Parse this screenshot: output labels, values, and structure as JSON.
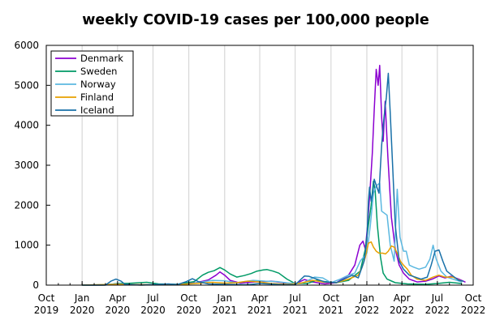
{
  "chart_data": {
    "type": "line",
    "title": "weekly COVID-19 cases per 100,000 people",
    "xlabel": "",
    "ylabel": "",
    "xlim": [
      "2019-10-01",
      "2022-10-01"
    ],
    "ylim": [
      0,
      6000
    ],
    "grid": "vertical",
    "legend_position": "top-left",
    "y_ticks": [
      {
        "value": 0,
        "label": "0"
      },
      {
        "value": 1000,
        "label": "1000"
      },
      {
        "value": 2000,
        "label": "2000"
      },
      {
        "value": 3000,
        "label": "3000"
      },
      {
        "value": 4000,
        "label": "4000"
      },
      {
        "value": 5000,
        "label": "5000"
      },
      {
        "value": 6000,
        "label": "6000"
      }
    ],
    "x_ticks": [
      {
        "date": "2019-10-01",
        "line1": "Oct",
        "line2": "2019"
      },
      {
        "date": "2020-01-01",
        "line1": "Jan",
        "line2": "2020"
      },
      {
        "date": "2020-04-01",
        "line1": "Apr",
        "line2": "2020"
      },
      {
        "date": "2020-07-01",
        "line1": "Jul",
        "line2": "2020"
      },
      {
        "date": "2020-10-01",
        "line1": "Oct",
        "line2": "2020"
      },
      {
        "date": "2021-01-01",
        "line1": "Jan",
        "line2": "2021"
      },
      {
        "date": "2021-04-01",
        "line1": "Apr",
        "line2": "2021"
      },
      {
        "date": "2021-07-01",
        "line1": "Jul",
        "line2": "2021"
      },
      {
        "date": "2021-10-01",
        "line1": "Oct",
        "line2": "2021"
      },
      {
        "date": "2022-01-01",
        "line1": "Jan",
        "line2": "2022"
      },
      {
        "date": "2022-04-01",
        "line1": "Apr",
        "line2": "2022"
      },
      {
        "date": "2022-07-01",
        "line1": "Jul",
        "line2": "2022"
      },
      {
        "date": "2022-10-01",
        "line1": "Oct",
        "line2": "2022"
      }
    ],
    "series": [
      {
        "name": "Denmark",
        "color": "#8b00d0",
        "points": [
          [
            "2020-01-01",
            0
          ],
          [
            "2020-03-05",
            5
          ],
          [
            "2020-04-01",
            40
          ],
          [
            "2020-05-01",
            15
          ],
          [
            "2020-07-01",
            5
          ],
          [
            "2020-09-01",
            20
          ],
          [
            "2020-10-20",
            60
          ],
          [
            "2020-11-20",
            130
          ],
          [
            "2020-12-10",
            250
          ],
          [
            "2020-12-20",
            330
          ],
          [
            "2021-01-01",
            250
          ],
          [
            "2021-01-15",
            120
          ],
          [
            "2021-02-10",
            50
          ],
          [
            "2021-04-01",
            90
          ],
          [
            "2021-05-01",
            100
          ],
          [
            "2021-06-01",
            60
          ],
          [
            "2021-07-01",
            30
          ],
          [
            "2021-07-25",
            140
          ],
          [
            "2021-08-15",
            80
          ],
          [
            "2021-09-15",
            30
          ],
          [
            "2021-10-15",
            60
          ],
          [
            "2021-11-15",
            250
          ],
          [
            "2021-12-01",
            500
          ],
          [
            "2021-12-14",
            1000
          ],
          [
            "2021-12-22",
            1100
          ],
          [
            "2021-12-28",
            900
          ],
          [
            "2022-01-03",
            1500
          ],
          [
            "2022-01-10",
            2500
          ],
          [
            "2022-01-15",
            3300
          ],
          [
            "2022-01-20",
            4400
          ],
          [
            "2022-01-25",
            5400
          ],
          [
            "2022-01-30",
            5000
          ],
          [
            "2022-02-03",
            5500
          ],
          [
            "2022-02-08",
            4200
          ],
          [
            "2022-02-12",
            3600
          ],
          [
            "2022-02-17",
            4600
          ],
          [
            "2022-02-24",
            3200
          ],
          [
            "2022-03-05",
            1700
          ],
          [
            "2022-03-15",
            900
          ],
          [
            "2022-03-25",
            500
          ],
          [
            "2022-04-05",
            300
          ],
          [
            "2022-04-20",
            150
          ],
          [
            "2022-05-10",
            80
          ],
          [
            "2022-06-01",
            100
          ],
          [
            "2022-06-20",
            160
          ],
          [
            "2022-07-05",
            230
          ],
          [
            "2022-07-20",
            180
          ],
          [
            "2022-08-05",
            220
          ],
          [
            "2022-08-25",
            150
          ],
          [
            "2022-09-10",
            80
          ]
        ]
      },
      {
        "name": "Sweden",
        "color": "#009a66",
        "points": [
          [
            "2020-01-01",
            0
          ],
          [
            "2020-03-01",
            5
          ],
          [
            "2020-04-01",
            40
          ],
          [
            "2020-05-01",
            45
          ],
          [
            "2020-06-15",
            70
          ],
          [
            "2020-07-15",
            30
          ],
          [
            "2020-09-01",
            20
          ],
          [
            "2020-10-15",
            90
          ],
          [
            "2020-11-05",
            250
          ],
          [
            "2020-11-20",
            320
          ],
          [
            "2020-12-05",
            360
          ],
          [
            "2020-12-20",
            440
          ],
          [
            "2021-01-01",
            380
          ],
          [
            "2021-01-15",
            280
          ],
          [
            "2021-02-01",
            200
          ],
          [
            "2021-02-20",
            240
          ],
          [
            "2021-03-10",
            290
          ],
          [
            "2021-03-25",
            350
          ],
          [
            "2021-04-10",
            380
          ],
          [
            "2021-04-20",
            390
          ],
          [
            "2021-05-05",
            350
          ],
          [
            "2021-05-20",
            300
          ],
          [
            "2021-06-10",
            150
          ],
          [
            "2021-07-01",
            40
          ],
          [
            "2021-08-01",
            40
          ],
          [
            "2021-08-25",
            120
          ],
          [
            "2021-09-15",
            90
          ],
          [
            "2021-10-15",
            60
          ],
          [
            "2021-11-15",
            120
          ],
          [
            "2021-12-15",
            350
          ],
          [
            "2021-12-28",
            900
          ],
          [
            "2022-01-05",
            1500
          ],
          [
            "2022-01-12",
            2000
          ],
          [
            "2022-01-18",
            2600
          ],
          [
            "2022-01-22",
            2400
          ],
          [
            "2022-01-28",
            1500
          ],
          [
            "2022-02-05",
            700
          ],
          [
            "2022-02-12",
            300
          ],
          [
            "2022-02-22",
            150
          ],
          [
            "2022-03-15",
            60
          ],
          [
            "2022-04-15",
            30
          ],
          [
            "2022-06-01",
            20
          ],
          [
            "2022-07-01",
            40
          ],
          [
            "2022-08-01",
            70
          ],
          [
            "2022-09-01",
            40
          ]
        ]
      },
      {
        "name": "Norway",
        "color": "#5bb8e0",
        "points": [
          [
            "2020-01-01",
            0
          ],
          [
            "2020-03-10",
            20
          ],
          [
            "2020-04-01",
            30
          ],
          [
            "2020-05-01",
            10
          ],
          [
            "2020-08-01",
            10
          ],
          [
            "2020-10-01",
            30
          ],
          [
            "2020-11-10",
            90
          ],
          [
            "2020-12-01",
            120
          ],
          [
            "2021-01-01",
            110
          ],
          [
            "2021-02-01",
            60
          ],
          [
            "2021-03-15",
            120
          ],
          [
            "2021-04-15",
            100
          ],
          [
            "2021-05-15",
            90
          ],
          [
            "2021-06-15",
            50
          ],
          [
            "2021-07-20",
            50
          ],
          [
            "2021-08-20",
            200
          ],
          [
            "2021-09-10",
            180
          ],
          [
            "2021-10-01",
            60
          ],
          [
            "2021-10-25",
            150
          ],
          [
            "2021-11-15",
            250
          ],
          [
            "2021-12-01",
            300
          ],
          [
            "2021-12-15",
            600
          ],
          [
            "2022-01-01",
            800
          ],
          [
            "2022-01-10",
            1500
          ],
          [
            "2022-01-18",
            2300
          ],
          [
            "2022-01-26",
            2500
          ],
          [
            "2022-02-03",
            2550
          ],
          [
            "2022-02-08",
            1850
          ],
          [
            "2022-02-15",
            1800
          ],
          [
            "2022-02-22",
            1750
          ],
          [
            "2022-03-02",
            1000
          ],
          [
            "2022-03-12",
            600
          ],
          [
            "2022-03-20",
            2400
          ],
          [
            "2022-03-27",
            1200
          ],
          [
            "2022-04-05",
            850
          ],
          [
            "2022-04-12",
            850
          ],
          [
            "2022-04-20",
            500
          ],
          [
            "2022-05-01",
            450
          ],
          [
            "2022-05-15",
            400
          ],
          [
            "2022-06-01",
            450
          ],
          [
            "2022-06-12",
            650
          ],
          [
            "2022-06-20",
            1000
          ],
          [
            "2022-06-28",
            650
          ],
          [
            "2022-07-10",
            350
          ],
          [
            "2022-07-25",
            200
          ],
          [
            "2022-08-10",
            150
          ],
          [
            "2022-09-01",
            80
          ]
        ]
      },
      {
        "name": "Finland",
        "color": "#e8a000",
        "points": [
          [
            "2020-01-01",
            0
          ],
          [
            "2020-04-01",
            20
          ],
          [
            "2020-06-01",
            10
          ],
          [
            "2020-09-01",
            10
          ],
          [
            "2020-11-01",
            50
          ],
          [
            "2020-12-01",
            70
          ],
          [
            "2021-01-01",
            50
          ],
          [
            "2021-02-01",
            60
          ],
          [
            "2021-03-01",
            100
          ],
          [
            "2021-04-01",
            80
          ],
          [
            "2021-05-01",
            40
          ],
          [
            "2021-06-15",
            20
          ],
          [
            "2021-07-15",
            50
          ],
          [
            "2021-08-15",
            120
          ],
          [
            "2021-09-15",
            70
          ],
          [
            "2021-10-15",
            60
          ],
          [
            "2021-11-15",
            150
          ],
          [
            "2021-12-10",
            250
          ],
          [
            "2021-12-20",
            450
          ],
          [
            "2021-12-28",
            700
          ],
          [
            "2022-01-05",
            1050
          ],
          [
            "2022-01-12",
            1080
          ],
          [
            "2022-01-18",
            950
          ],
          [
            "2022-01-25",
            850
          ],
          [
            "2022-02-01",
            800
          ],
          [
            "2022-02-10",
            800
          ],
          [
            "2022-02-18",
            780
          ],
          [
            "2022-02-25",
            850
          ],
          [
            "2022-03-05",
            980
          ],
          [
            "2022-03-12",
            950
          ],
          [
            "2022-03-20",
            800
          ],
          [
            "2022-03-28",
            600
          ],
          [
            "2022-04-05",
            500
          ],
          [
            "2022-04-15",
            400
          ],
          [
            "2022-04-25",
            250
          ],
          [
            "2022-05-10",
            150
          ],
          [
            "2022-06-01",
            120
          ],
          [
            "2022-06-20",
            200
          ],
          [
            "2022-07-05",
            250
          ],
          [
            "2022-07-20",
            200
          ],
          [
            "2022-08-10",
            200
          ],
          [
            "2022-09-01",
            100
          ]
        ]
      },
      {
        "name": "Iceland",
        "color": "#1870a8",
        "points": [
          [
            "2020-01-01",
            0
          ],
          [
            "2020-03-01",
            0
          ],
          [
            "2020-03-15",
            100
          ],
          [
            "2020-03-28",
            150
          ],
          [
            "2020-04-10",
            100
          ],
          [
            "2020-04-20",
            20
          ],
          [
            "2020-06-01",
            0
          ],
          [
            "2020-08-10",
            30
          ],
          [
            "2020-09-01",
            10
          ],
          [
            "2020-09-25",
            90
          ],
          [
            "2020-10-10",
            160
          ],
          [
            "2020-10-25",
            90
          ],
          [
            "2020-11-20",
            30
          ],
          [
            "2021-01-01",
            20
          ],
          [
            "2021-03-01",
            10
          ],
          [
            "2021-04-01",
            40
          ],
          [
            "2021-06-01",
            10
          ],
          [
            "2021-07-01",
            10
          ],
          [
            "2021-07-25",
            230
          ],
          [
            "2021-08-05",
            220
          ],
          [
            "2021-08-25",
            150
          ],
          [
            "2021-09-15",
            80
          ],
          [
            "2021-10-15",
            60
          ],
          [
            "2021-11-10",
            180
          ],
          [
            "2021-11-25",
            250
          ],
          [
            "2021-12-10",
            180
          ],
          [
            "2021-12-25",
            600
          ],
          [
            "2022-01-01",
            1100
          ],
          [
            "2022-01-05",
            2100
          ],
          [
            "2022-01-08",
            2450
          ],
          [
            "2022-01-12",
            2100
          ],
          [
            "2022-01-16",
            2300
          ],
          [
            "2022-01-20",
            2650
          ],
          [
            "2022-01-25",
            2500
          ],
          [
            "2022-02-01",
            2300
          ],
          [
            "2022-02-08",
            3500
          ],
          [
            "2022-02-14",
            4200
          ],
          [
            "2022-02-20",
            4700
          ],
          [
            "2022-02-25",
            5300
          ],
          [
            "2022-03-02",
            4300
          ],
          [
            "2022-03-08",
            3000
          ],
          [
            "2022-03-15",
            1500
          ],
          [
            "2022-03-25",
            600
          ],
          [
            "2022-04-05",
            400
          ],
          [
            "2022-04-20",
            250
          ],
          [
            "2022-05-05",
            200
          ],
          [
            "2022-05-20",
            150
          ],
          [
            "2022-06-05",
            200
          ],
          [
            "2022-06-15",
            500
          ],
          [
            "2022-06-25",
            850
          ],
          [
            "2022-07-05",
            880
          ],
          [
            "2022-07-15",
            600
          ],
          [
            "2022-07-25",
            350
          ],
          [
            "2022-08-10",
            230
          ],
          [
            "2022-08-25",
            120
          ],
          [
            "2022-09-05",
            100
          ]
        ]
      }
    ]
  }
}
